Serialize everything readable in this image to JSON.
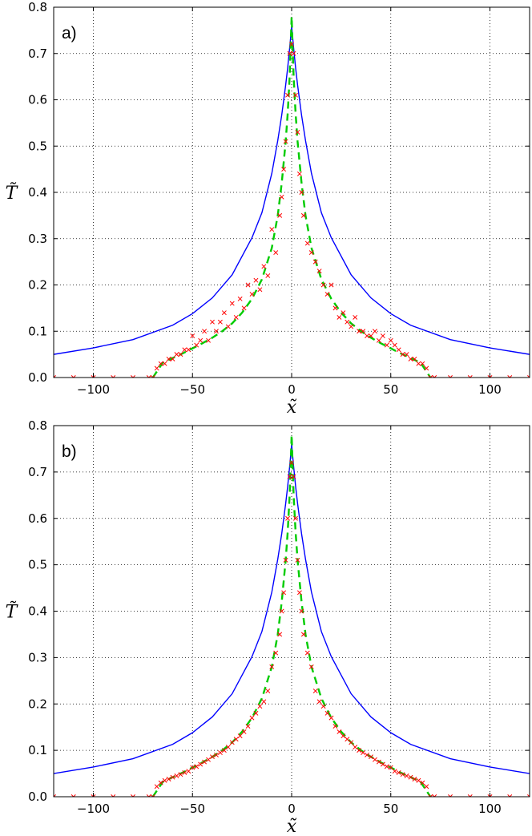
{
  "chart_data": [
    {
      "type": "line",
      "panel_label": "a)",
      "xlabel": "x̃",
      "ylabel": "T̃",
      "xlim": [
        -120,
        120
      ],
      "ylim": [
        0.0,
        0.8
      ],
      "xticks": [
        -100,
        -50,
        0,
        50,
        100
      ],
      "xtick_labels": [
        "−100",
        "−50",
        "0",
        "50",
        "100"
      ],
      "yticks": [
        0.0,
        0.1,
        0.2,
        0.3,
        0.4,
        0.5,
        0.6,
        0.7,
        0.8
      ],
      "ytick_labels": [
        "0.0",
        "0.1",
        "0.2",
        "0.3",
        "0.4",
        "0.5",
        "0.6",
        "0.7",
        "0.8"
      ],
      "grid": true,
      "series": [
        {
          "style": "solid",
          "color": "#0000ff",
          "x": [
            -120,
            -100,
            -80,
            -60,
            -50,
            -40,
            -30,
            -20,
            -15,
            -10,
            -7,
            -5,
            -3,
            -2,
            -1,
            -0.5,
            0,
            0.5,
            1,
            2,
            3,
            5,
            7,
            10,
            15,
            20,
            30,
            40,
            50,
            60,
            80,
            100,
            120
          ],
          "y": [
            0.05,
            0.064,
            0.082,
            0.113,
            0.138,
            0.172,
            0.222,
            0.302,
            0.356,
            0.441,
            0.512,
            0.567,
            0.632,
            0.669,
            0.712,
            0.735,
            0.76,
            0.735,
            0.712,
            0.669,
            0.632,
            0.567,
            0.512,
            0.441,
            0.356,
            0.302,
            0.222,
            0.172,
            0.138,
            0.113,
            0.082,
            0.064,
            0.05
          ]
        },
        {
          "style": "dashed",
          "color": "#00cc00",
          "x": [
            -70,
            -65,
            -60,
            -55,
            -50,
            -45,
            -40,
            -35,
            -30,
            -25,
            -20,
            -15,
            -10,
            -7,
            -5,
            -3,
            -2,
            -1,
            0,
            1,
            2,
            3,
            5,
            7,
            10,
            15,
            20,
            25,
            30,
            35,
            40,
            45,
            50,
            55,
            60,
            65,
            70
          ],
          "y": [
            0.0,
            0.032,
            0.042,
            0.052,
            0.063,
            0.074,
            0.086,
            0.1,
            0.117,
            0.14,
            0.17,
            0.212,
            0.28,
            0.35,
            0.42,
            0.51,
            0.57,
            0.65,
            0.78,
            0.65,
            0.57,
            0.51,
            0.42,
            0.35,
            0.28,
            0.212,
            0.17,
            0.14,
            0.117,
            0.1,
            0.086,
            0.074,
            0.063,
            0.052,
            0.042,
            0.032,
            0.0
          ]
        },
        {
          "style": "markers-x",
          "color": "#ff0000",
          "x": [
            -120,
            -110,
            -100,
            -90,
            -80,
            -72,
            -70,
            -68,
            -66,
            -64,
            -62,
            -60,
            -58,
            -56,
            -54,
            -52,
            -50,
            -48,
            -46,
            -44,
            -42,
            -40,
            -38,
            -36,
            -34,
            -32,
            -30,
            -28,
            -26,
            -24,
            -22,
            -20,
            -18,
            -16,
            -14,
            -12,
            -10,
            -8,
            -6,
            -5,
            -4,
            -3,
            -2,
            -1,
            0,
            1,
            2,
            3,
            4,
            5,
            6,
            8,
            10,
            12,
            14,
            16,
            18,
            20,
            22,
            24,
            26,
            28,
            30,
            32,
            34,
            36,
            38,
            40,
            42,
            44,
            46,
            48,
            50,
            52,
            54,
            56,
            58,
            60,
            62,
            64,
            66,
            68,
            70,
            72,
            80,
            90,
            100,
            110,
            120
          ],
          "y": [
            0.0,
            0.0,
            0.0,
            0.0,
            0.0,
            0.0,
            0.0,
            0.02,
            0.03,
            0.03,
            0.04,
            0.04,
            0.05,
            0.05,
            0.06,
            0.06,
            0.09,
            0.07,
            0.08,
            0.1,
            0.08,
            0.12,
            0.1,
            0.12,
            0.14,
            0.11,
            0.16,
            0.13,
            0.17,
            0.15,
            0.2,
            0.18,
            0.21,
            0.19,
            0.24,
            0.22,
            0.32,
            0.27,
            0.35,
            0.39,
            0.45,
            0.51,
            0.61,
            0.7,
            0.72,
            0.7,
            0.61,
            0.53,
            0.44,
            0.4,
            0.35,
            0.29,
            0.27,
            0.25,
            0.23,
            0.2,
            0.18,
            0.2,
            0.15,
            0.13,
            0.14,
            0.12,
            0.11,
            0.13,
            0.1,
            0.1,
            0.09,
            0.09,
            0.1,
            0.08,
            0.09,
            0.07,
            0.08,
            0.07,
            0.06,
            0.05,
            0.05,
            0.04,
            0.04,
            0.03,
            0.03,
            0.02,
            0.0,
            0.0,
            0.0,
            0.0,
            0.0,
            0.0,
            0.0
          ]
        }
      ]
    },
    {
      "type": "line",
      "panel_label": "b)",
      "xlabel": "x̃",
      "ylabel": "T̃",
      "xlim": [
        -120,
        120
      ],
      "ylim": [
        0.0,
        0.8
      ],
      "xticks": [
        -100,
        -50,
        0,
        50,
        100
      ],
      "xtick_labels": [
        "−100",
        "−50",
        "0",
        "50",
        "100"
      ],
      "yticks": [
        0.0,
        0.1,
        0.2,
        0.3,
        0.4,
        0.5,
        0.6,
        0.7,
        0.8
      ],
      "ytick_labels": [
        "0.0",
        "0.1",
        "0.2",
        "0.3",
        "0.4",
        "0.5",
        "0.6",
        "0.7",
        "0.8"
      ],
      "grid": true,
      "series": [
        {
          "style": "solid",
          "color": "#0000ff",
          "x": [
            -120,
            -100,
            -80,
            -60,
            -50,
            -40,
            -30,
            -20,
            -15,
            -10,
            -7,
            -5,
            -3,
            -2,
            -1,
            -0.5,
            0,
            0.5,
            1,
            2,
            3,
            5,
            7,
            10,
            15,
            20,
            30,
            40,
            50,
            60,
            80,
            100,
            120
          ],
          "y": [
            0.05,
            0.064,
            0.082,
            0.113,
            0.138,
            0.172,
            0.222,
            0.302,
            0.356,
            0.441,
            0.512,
            0.567,
            0.632,
            0.669,
            0.712,
            0.735,
            0.76,
            0.735,
            0.712,
            0.669,
            0.632,
            0.567,
            0.512,
            0.441,
            0.356,
            0.302,
            0.222,
            0.172,
            0.138,
            0.113,
            0.082,
            0.064,
            0.05
          ]
        },
        {
          "style": "dashed",
          "color": "#00cc00",
          "x": [
            -70,
            -65,
            -60,
            -55,
            -50,
            -45,
            -40,
            -35,
            -30,
            -25,
            -20,
            -15,
            -10,
            -7,
            -5,
            -3,
            -2,
            -1,
            0,
            1,
            2,
            3,
            5,
            7,
            10,
            15,
            20,
            25,
            30,
            35,
            40,
            45,
            50,
            55,
            60,
            65,
            70
          ],
          "y": [
            0.0,
            0.032,
            0.042,
            0.052,
            0.063,
            0.074,
            0.086,
            0.1,
            0.117,
            0.14,
            0.17,
            0.212,
            0.28,
            0.35,
            0.42,
            0.51,
            0.57,
            0.65,
            0.78,
            0.65,
            0.57,
            0.51,
            0.42,
            0.35,
            0.28,
            0.212,
            0.17,
            0.14,
            0.117,
            0.1,
            0.086,
            0.074,
            0.063,
            0.052,
            0.042,
            0.032,
            0.0
          ]
        },
        {
          "style": "markers-x",
          "color": "#ff0000",
          "x": [
            -120,
            -110,
            -100,
            -90,
            -80,
            -72,
            -70,
            -68,
            -66,
            -64,
            -62,
            -60,
            -58,
            -56,
            -54,
            -52,
            -50,
            -48,
            -46,
            -44,
            -42,
            -40,
            -38,
            -36,
            -34,
            -32,
            -30,
            -28,
            -26,
            -24,
            -22,
            -20,
            -18,
            -16,
            -14,
            -12,
            -10,
            -8,
            -6,
            -5,
            -4,
            -3,
            -2,
            -1,
            0,
            1,
            2,
            3,
            4,
            5,
            6,
            8,
            10,
            12,
            14,
            16,
            18,
            20,
            22,
            24,
            26,
            28,
            30,
            32,
            34,
            36,
            38,
            40,
            42,
            44,
            46,
            48,
            50,
            52,
            54,
            56,
            58,
            60,
            62,
            64,
            66,
            68,
            70,
            72,
            80,
            90,
            100,
            110,
            120
          ],
          "y": [
            0.0,
            0.0,
            0.0,
            0.0,
            0.0,
            0.0,
            0.0,
            0.022,
            0.03,
            0.035,
            0.038,
            0.042,
            0.045,
            0.048,
            0.052,
            0.055,
            0.063,
            0.065,
            0.07,
            0.075,
            0.08,
            0.086,
            0.09,
            0.095,
            0.1,
            0.107,
            0.117,
            0.124,
            0.131,
            0.14,
            0.152,
            0.17,
            0.18,
            0.195,
            0.205,
            0.228,
            0.28,
            0.31,
            0.35,
            0.4,
            0.44,
            0.51,
            0.6,
            0.69,
            0.72,
            0.69,
            0.6,
            0.51,
            0.44,
            0.4,
            0.35,
            0.31,
            0.28,
            0.228,
            0.205,
            0.195,
            0.18,
            0.17,
            0.152,
            0.14,
            0.131,
            0.124,
            0.117,
            0.107,
            0.1,
            0.095,
            0.09,
            0.086,
            0.08,
            0.075,
            0.07,
            0.065,
            0.063,
            0.055,
            0.052,
            0.048,
            0.045,
            0.042,
            0.038,
            0.035,
            0.03,
            0.022,
            0.0,
            0.0,
            0.0,
            0.0,
            0.0,
            0.0,
            0.0
          ]
        }
      ]
    }
  ]
}
